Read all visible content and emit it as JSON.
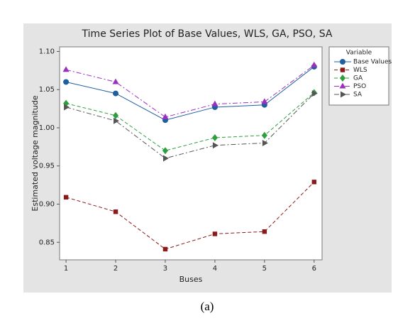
{
  "chart_data": {
    "type": "line",
    "title": "Time Series Plot of Base Values, WLS, GA, PSO, SA",
    "x_label": "Buses",
    "y_label": "Estimated voltage magnitude",
    "legend_title": "Variable",
    "caption": "(a)",
    "x": [
      1,
      2,
      3,
      4,
      5,
      6
    ],
    "xlim": [
      0.87,
      6.16
    ],
    "xticks": [
      1,
      2,
      3,
      4,
      5,
      6
    ],
    "ylim": [
      0.827,
      1.106
    ],
    "yticks": [
      0.85,
      {
        "value": 0.9,
        "label": "0.90"
      },
      0.95,
      {
        "value": 1.0,
        "label": "1.00"
      },
      1.05,
      {
        "value": 1.1,
        "label": "1.10"
      }
    ],
    "legend_position": "right",
    "series": [
      {
        "name": "Base Values",
        "color": "#1f5fa0",
        "marker": "circle",
        "dash": "solid",
        "values": [
          1.06,
          1.045,
          1.01,
          1.027,
          1.03,
          1.08
        ]
      },
      {
        "name": "WLS",
        "color": "#8b1a1a",
        "marker": "square",
        "dash": "dashed",
        "values": [
          0.909,
          0.89,
          0.841,
          0.861,
          0.864,
          0.929
        ]
      },
      {
        "name": "GA",
        "color": "#2e9e3e",
        "marker": "diamond",
        "dash": "dashed",
        "values": [
          1.032,
          1.016,
          0.97,
          0.987,
          0.99,
          1.046
        ]
      },
      {
        "name": "PSO",
        "color": "#9b30c0",
        "marker": "triangle",
        "dash": "dashdot",
        "values": [
          1.076,
          1.06,
          1.014,
          1.031,
          1.034,
          1.082
        ]
      },
      {
        "name": "SA",
        "color": "#555555",
        "marker": "triangle-right",
        "dash": "dashdot",
        "values": [
          1.027,
          1.009,
          0.96,
          0.977,
          0.98,
          1.045
        ]
      }
    ]
  }
}
